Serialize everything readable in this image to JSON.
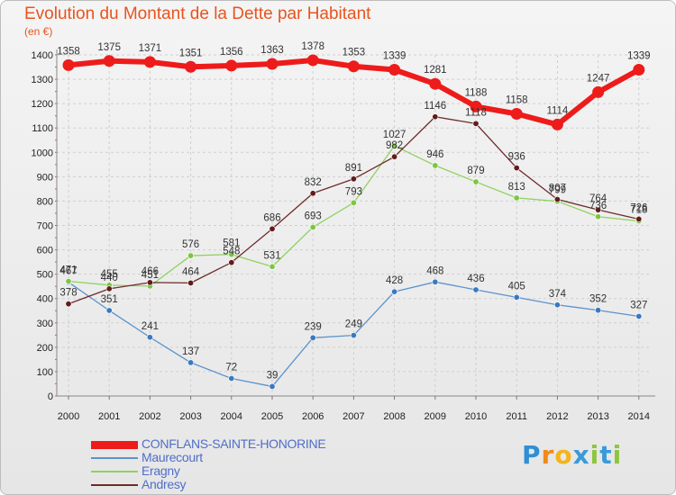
{
  "chart_data": {
    "type": "line",
    "title": "Evolution du Montant de la Dette par Habitant",
    "ylabel": "(en €)",
    "ylim": [
      0,
      1400
    ],
    "yticks": [
      0,
      100,
      200,
      300,
      400,
      500,
      600,
      700,
      800,
      900,
      1000,
      1100,
      1200,
      1300,
      1400
    ],
    "grid": true,
    "legend_position": "bottom-left",
    "categories": [
      "2000",
      "2001",
      "2002",
      "2003",
      "2004",
      "2005",
      "2006",
      "2007",
      "2008",
      "2009",
      "2010",
      "2011",
      "2012",
      "2013",
      "2014"
    ],
    "series": [
      {
        "name": "Maurecourt",
        "color": "#5b93cc",
        "marker": "#3a79c0",
        "width": 1.3,
        "values": [
          467,
          351,
          241,
          137,
          72,
          39,
          239,
          249,
          428,
          468,
          436,
          405,
          374,
          352,
          327
        ]
      },
      {
        "name": "Eragny",
        "color": "#8fd25e",
        "marker": "#7dc542",
        "width": 1.3,
        "values": [
          471,
          455,
          451,
          576,
          581,
          531,
          693,
          793,
          1027,
          946,
          879,
          813,
          799,
          736,
          718
        ]
      },
      {
        "name": "Andresy",
        "color": "#6e2a2a",
        "marker": "#611c1c",
        "width": 1.3,
        "values": [
          378,
          440,
          466,
          464,
          548,
          686,
          832,
          891,
          982,
          1146,
          1118,
          936,
          807,
          764,
          726
        ]
      },
      {
        "name": "CONFLANS-SAINTE-HONORINE",
        "color": "#ee1b1b",
        "marker": "#ee1b1b",
        "width": 6,
        "values": [
          1358,
          1375,
          1371,
          1351,
          1356,
          1363,
          1378,
          1353,
          1339,
          1281,
          1188,
          1158,
          1114,
          1247,
          1339
        ]
      }
    ]
  },
  "legend_order": [
    "CONFLANS-SAINTE-HONORINE",
    "Maurecourt",
    "Eragny",
    "Andresy"
  ],
  "logo": {
    "letters": [
      "P",
      "r",
      "o",
      "x",
      "i",
      "t",
      "i"
    ],
    "colors": [
      "#2f8fd6",
      "#f08a1c",
      "#f4b41a",
      "#3a9ad9",
      "#8cc63f",
      "#3a9ad9",
      "#8cc63f"
    ]
  }
}
